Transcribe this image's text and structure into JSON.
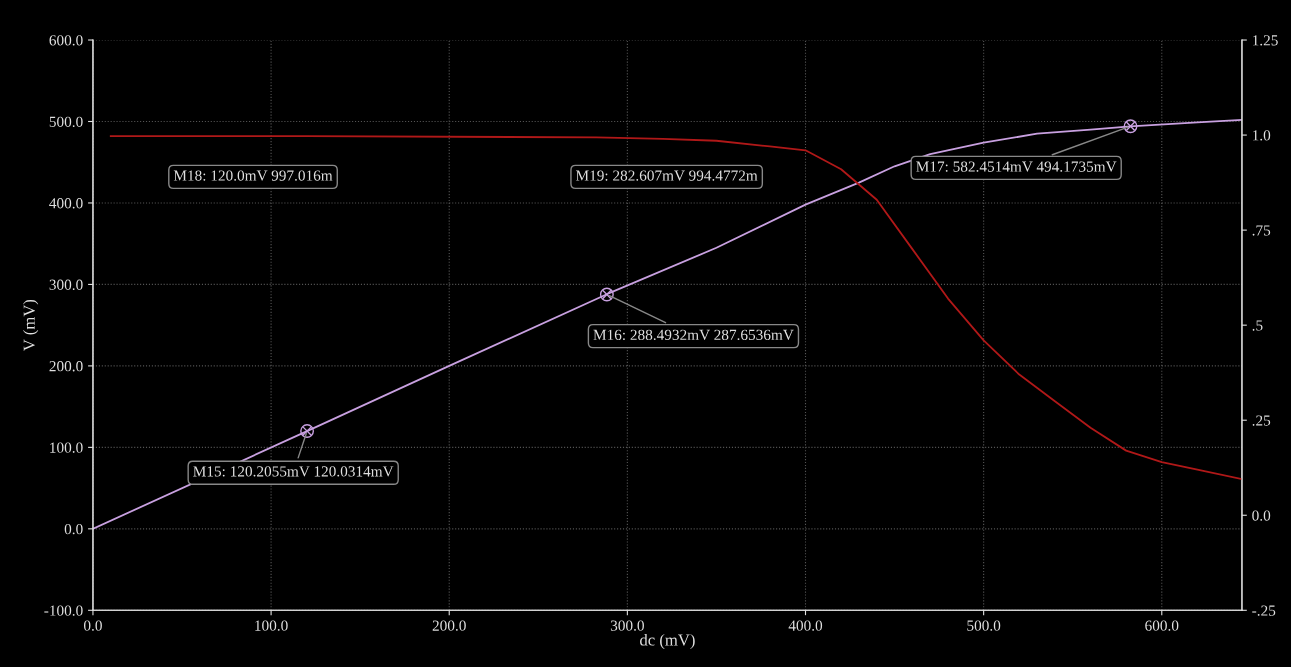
{
  "chart_data": {
    "type": "line",
    "xlabel": "dc (mV)",
    "ylabel": "V (mV)",
    "xlim": [
      0,
      645
    ],
    "xticks": [
      {
        "value": 0,
        "label": "0.0"
      },
      {
        "value": 100,
        "label": "100.0"
      },
      {
        "value": 200,
        "label": "200.0"
      },
      {
        "value": 300,
        "label": "300.0"
      },
      {
        "value": 400,
        "label": "400.0"
      },
      {
        "value": 500,
        "label": "500.0"
      },
      {
        "value": 600,
        "label": "600.0"
      }
    ],
    "ylim": [
      -100,
      600
    ],
    "yticks": [
      {
        "value": -100,
        "label": "-100.0"
      },
      {
        "value": 0,
        "label": "0.0"
      },
      {
        "value": 100,
        "label": "100.0"
      },
      {
        "value": 200,
        "label": "200.0"
      },
      {
        "value": 300,
        "label": "300.0"
      },
      {
        "value": 400,
        "label": "400.0"
      },
      {
        "value": 500,
        "label": "500.0"
      },
      {
        "value": 600,
        "label": "600.0"
      }
    ],
    "y2lim": [
      -0.25,
      1.25
    ],
    "y2ticks": [
      {
        "value": -0.25,
        "label": "-.25"
      },
      {
        "value": 0,
        "label": "0.0"
      },
      {
        "value": 0.25,
        "label": ".25"
      },
      {
        "value": 0.5,
        "label": ".5"
      },
      {
        "value": 0.75,
        "label": ".75"
      },
      {
        "value": 1.0,
        "label": "1.0"
      },
      {
        "value": 1.25,
        "label": "1.25"
      }
    ],
    "grid": true,
    "marker": "none",
    "line_style": "solid",
    "series": [
      {
        "color": "#c8a0e0",
        "x": [
          0,
          120.2055,
          200,
          288.4932,
          350,
          400,
          430,
          450,
          470,
          500,
          530,
          560,
          582.4514,
          620,
          645
        ],
        "values": [
          0,
          120,
          200,
          288,
          345,
          398,
          425,
          445,
          460,
          474,
          485,
          490,
          494,
          499,
          502
        ]
      },
      {
        "color": "#b01818",
        "axis": "y2",
        "x": [
          10,
          120.0,
          282.607,
          320,
          350,
          380,
          400,
          420,
          430,
          440,
          460,
          480,
          500,
          520,
          540,
          560,
          580,
          600,
          620,
          645
        ],
        "values": [
          0.997,
          0.997,
          0.994,
          0.99,
          0.985,
          0.97,
          0.96,
          0.91,
          0.87,
          0.83,
          0.7,
          0.57,
          0.46,
          0.37,
          0.3,
          0.23,
          0.17,
          0.14,
          0.12,
          0.095
        ]
      }
    ],
    "annotations": [
      "M18: 120.0mV 997.016m",
      "M19: 282.607mV 994.4772m",
      {
        "text": "M17: 582.4514mV 494.1735mV",
        "x": 582.4514,
        "y": 494.1735
      },
      {
        "text": "M16: 288.4932mV 287.6536mV",
        "x": 288.4932,
        "y": 287.6536
      },
      {
        "text": "M15: 120.2055mV 120.0314mV",
        "x": 120.2055,
        "y": 120.0314
      }
    ]
  }
}
